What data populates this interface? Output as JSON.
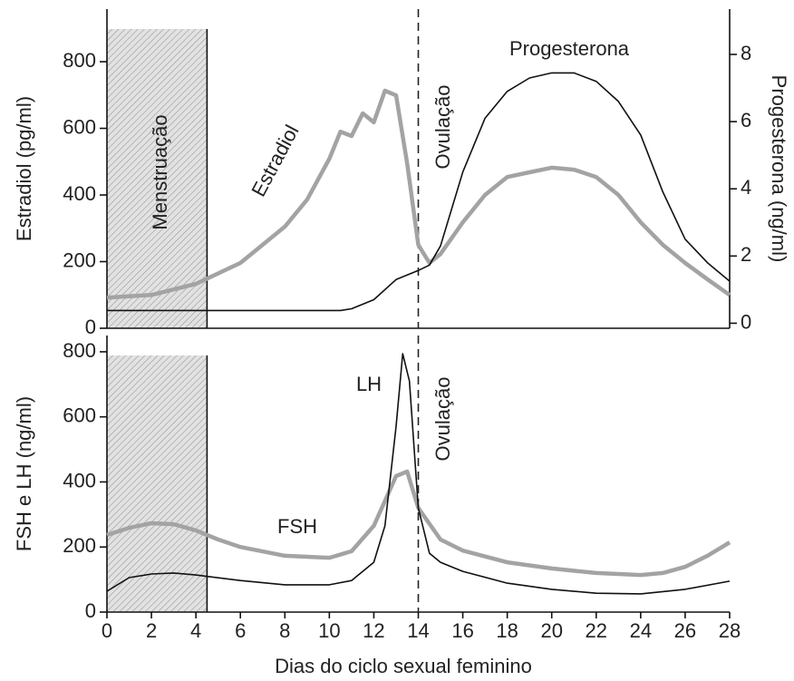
{
  "chart_data": [
    {
      "type": "line",
      "ylabel": "Estradiol (pg/ml)",
      "y2label": "Progesterona (ng/ml)",
      "xlim": [
        0,
        28
      ],
      "ylim": [
        0,
        958
      ],
      "yticks": [
        0,
        200,
        400,
        600,
        800
      ],
      "y2lim": [
        -0.15,
        9.35
      ],
      "y2ticks": [
        0,
        2,
        4,
        6,
        8
      ],
      "shaded_span": [
        0,
        4.5
      ],
      "shaded_label": "Menstruação",
      "vline": 14,
      "vline_label": "Ovulação",
      "series": [
        {
          "name": "Estradiol",
          "color": "#a3a3a3",
          "x": [
            0,
            2,
            4,
            6,
            8,
            9,
            10,
            10.5,
            11,
            11.5,
            12,
            12.5,
            13,
            13.5,
            14,
            14.5,
            15,
            16,
            17,
            18,
            19,
            20,
            21,
            22,
            23,
            24,
            25,
            26,
            27,
            28
          ],
          "values": [
            92,
            100,
            133,
            196,
            305,
            386,
            509,
            590,
            577,
            645,
            618,
            713,
            699,
            495,
            250,
            196,
            223,
            318,
            400,
            454,
            468,
            482,
            476,
            454,
            400,
            318,
            250,
            196,
            147,
            100
          ]
        },
        {
          "name": "Progesterona",
          "color": "#111111",
          "axis": "y2",
          "x": [
            0,
            10.5,
            11,
            12,
            13,
            14,
            14.5,
            15,
            16,
            17,
            18,
            19,
            20,
            21,
            22,
            23,
            24,
            25,
            26,
            27,
            28
          ],
          "values": [
            0.38,
            0.38,
            0.43,
            0.7,
            1.3,
            1.57,
            1.73,
            2.3,
            4.5,
            6.1,
            6.9,
            7.3,
            7.45,
            7.45,
            7.2,
            6.6,
            5.6,
            3.9,
            2.5,
            1.8,
            1.25
          ]
        }
      ]
    },
    {
      "type": "line",
      "xlabel": "Dias do ciclo sexual feminino",
      "ylabel": "FSH e LH (ng/ml)",
      "xlim": [
        0,
        28
      ],
      "xticks": [
        0,
        2,
        4,
        6,
        8,
        10,
        12,
        14,
        16,
        18,
        20,
        22,
        24,
        26,
        28
      ],
      "ylim": [
        0,
        850
      ],
      "yticks": [
        0,
        200,
        400,
        600,
        800
      ],
      "shaded_span": [
        0,
        4.5
      ],
      "vline": 14,
      "vline_label": "Ovulação",
      "series": [
        {
          "name": "FSH",
          "color": "#a3a3a3",
          "x": [
            0,
            1,
            2,
            3,
            4,
            5,
            6,
            8,
            10,
            11,
            12,
            13,
            13.5,
            14,
            15,
            16,
            18,
            20,
            22,
            24,
            25,
            26,
            27,
            28
          ],
          "values": [
            237,
            259,
            273,
            270,
            251,
            223,
            200,
            173,
            167,
            187,
            265,
            418,
            432,
            320,
            223,
            189,
            153,
            134,
            120,
            114,
            120,
            139,
            173,
            214
          ]
        },
        {
          "name": "LH",
          "color": "#111111",
          "x": [
            0,
            1,
            2,
            3,
            4,
            6,
            8,
            10,
            11,
            12,
            12.5,
            13,
            13.3,
            13.6,
            14,
            14.5,
            15,
            16,
            18,
            20,
            22,
            24,
            26,
            28
          ],
          "values": [
            64,
            106,
            117,
            120,
            114,
            97,
            84,
            84,
            97,
            153,
            265,
            571,
            794,
            710,
            320,
            181,
            153,
            125,
            89,
            70,
            58,
            56,
            70,
            95
          ]
        }
      ]
    }
  ]
}
